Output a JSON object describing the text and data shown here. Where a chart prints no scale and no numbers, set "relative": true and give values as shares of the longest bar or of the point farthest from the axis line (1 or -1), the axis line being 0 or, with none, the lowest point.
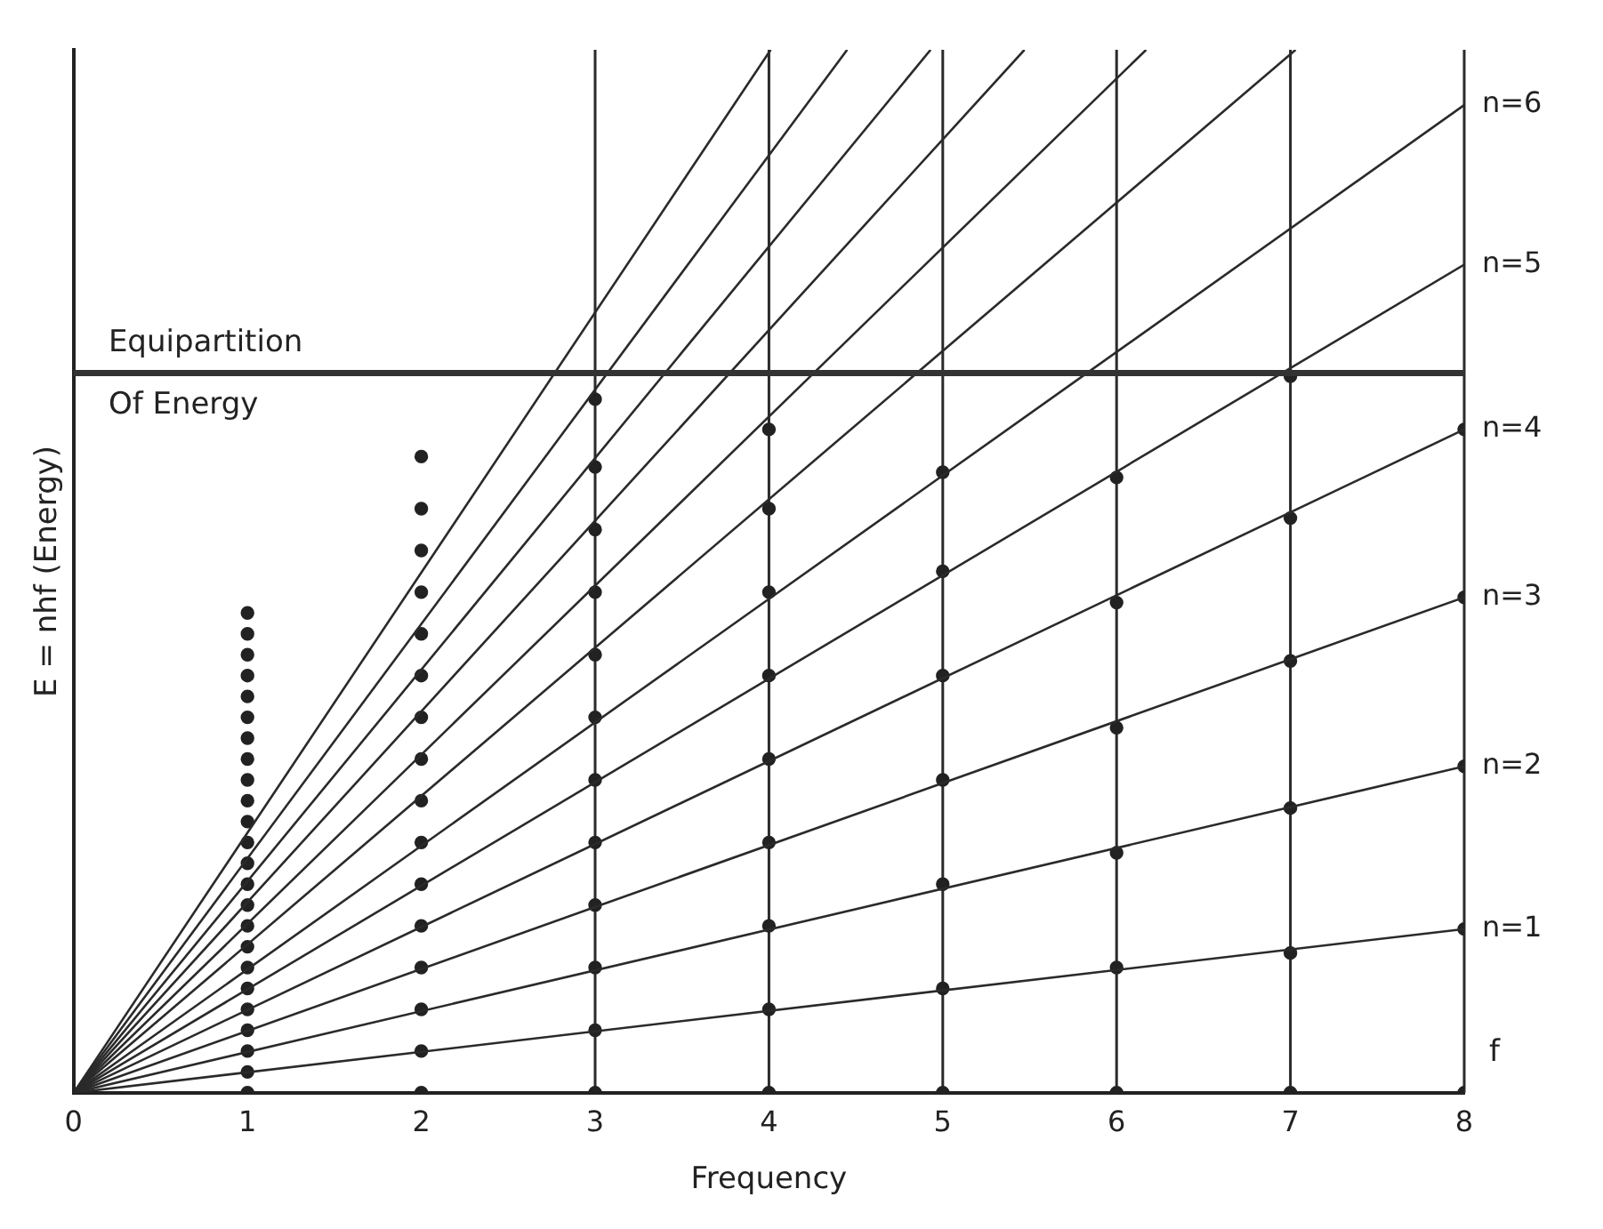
{
  "chart_data": {
    "type": "line",
    "relative": true,
    "xlabel": "Frequency",
    "ylabel": "E = nhf (Energy)",
    "xlim": [
      0,
      8
    ],
    "xticks": [
      0,
      1,
      2,
      3,
      4,
      5,
      6,
      7,
      8
    ],
    "tick_labels": "x",
    "grid": false,
    "legend": false,
    "line_style": "solid",
    "series": [
      {
        "name": "n=1",
        "color": "#2a2a2a",
        "x": [
          0,
          8
        ],
        "values": [
          0,
          0.157
        ]
      },
      {
        "name": "n=2",
        "color": "#2a2a2a",
        "x": [
          0,
          8
        ],
        "values": [
          0,
          0.313
        ]
      },
      {
        "name": "n=3",
        "color": "#2a2a2a",
        "x": [
          0,
          8
        ],
        "values": [
          0,
          0.475
        ]
      },
      {
        "name": "n=4",
        "color": "#2a2a2a",
        "x": [
          0,
          8
        ],
        "values": [
          0,
          0.636
        ]
      },
      {
        "name": "n=5",
        "color": "#2a2a2a",
        "x": [
          0,
          8
        ],
        "values": [
          0,
          0.794
        ]
      },
      {
        "name": "n=6",
        "color": "#2a2a2a",
        "x": [
          0,
          8
        ],
        "values": [
          0,
          0.947
        ]
      },
      {
        "color": "#2a2a2a",
        "x": [
          0,
          7.03
        ],
        "values": [
          0,
          1
        ]
      },
      {
        "color": "#2a2a2a",
        "x": [
          0,
          6.17
        ],
        "values": [
          0,
          1
        ]
      },
      {
        "color": "#2a2a2a",
        "x": [
          0,
          5.47
        ],
        "values": [
          0,
          1
        ]
      },
      {
        "color": "#2a2a2a",
        "x": [
          0,
          4.93
        ],
        "values": [
          0,
          1
        ]
      },
      {
        "color": "#2a2a2a",
        "x": [
          0,
          4.45
        ],
        "values": [
          0,
          1
        ]
      },
      {
        "color": "#2a2a2a",
        "x": [
          0,
          4.01
        ],
        "values": [
          0,
          1
        ]
      },
      {
        "type": "scatter",
        "color": "#222222",
        "marker": "circle",
        "x": [
          1,
          1,
          1,
          1,
          1,
          1,
          1,
          1,
          1,
          1,
          1,
          1,
          1,
          1,
          1,
          1,
          1,
          1,
          1,
          1,
          1,
          1,
          1,
          1
        ],
        "values": [
          0,
          0.02,
          0.04,
          0.06,
          0.08,
          0.1,
          0.12,
          0.14,
          0.16,
          0.18,
          0.2,
          0.22,
          0.24,
          0.26,
          0.28,
          0.3,
          0.32,
          0.34,
          0.36,
          0.38,
          0.4,
          0.42,
          0.44,
          0.46
        ]
      },
      {
        "type": "scatter",
        "color": "#222222",
        "marker": "circle",
        "x": [
          2,
          2,
          2,
          2,
          2,
          2,
          2,
          2,
          2,
          2,
          2,
          2,
          2,
          2,
          2,
          2
        ],
        "values": [
          0,
          0.04,
          0.08,
          0.12,
          0.16,
          0.2,
          0.24,
          0.28,
          0.32,
          0.36,
          0.4,
          0.44,
          0.48,
          0.52,
          0.56,
          0.61
        ]
      },
      {
        "type": "scatter",
        "color": "#222222",
        "marker": "circle",
        "x": [
          3,
          3,
          3,
          3,
          3,
          3,
          3,
          3,
          3,
          3,
          3,
          3
        ],
        "values": [
          0,
          0.06,
          0.12,
          0.18,
          0.24,
          0.3,
          0.36,
          0.42,
          0.48,
          0.54,
          0.6,
          0.665
        ]
      },
      {
        "type": "scatter",
        "color": "#222222",
        "marker": "circle",
        "x": [
          4,
          4,
          4,
          4,
          4,
          4,
          4,
          4,
          4
        ],
        "values": [
          0,
          0.08,
          0.16,
          0.24,
          0.32,
          0.4,
          0.48,
          0.56,
          0.636
        ]
      },
      {
        "type": "scatter",
        "color": "#222222",
        "marker": "circle",
        "x": [
          5,
          5,
          5,
          5,
          5,
          5,
          5
        ],
        "values": [
          0,
          0.1,
          0.2,
          0.3,
          0.4,
          0.5,
          0.595
        ]
      },
      {
        "type": "scatter",
        "color": "#222222",
        "marker": "circle",
        "x": [
          6,
          6,
          6,
          6,
          6,
          6
        ],
        "values": [
          0,
          0.12,
          0.23,
          0.35,
          0.47,
          0.59
        ]
      },
      {
        "type": "scatter",
        "color": "#222222",
        "marker": "circle",
        "x": [
          7,
          7,
          7,
          7,
          7,
          7
        ],
        "values": [
          0,
          0.134,
          0.273,
          0.414,
          0.551,
          0.687
        ]
      },
      {
        "type": "scatter",
        "color": "#222222",
        "marker": "circle",
        "x": [
          8,
          8,
          8,
          8,
          8
        ],
        "values": [
          0,
          0.157,
          0.313,
          0.475,
          0.636
        ]
      }
    ],
    "ref_lines": [
      {
        "axis": "y",
        "value": 0.69,
        "label": "Equipartition",
        "color": "#333333",
        "line_style": "solid"
      },
      {
        "axis": "x",
        "value": 3,
        "color": "#2a2a2a"
      },
      {
        "axis": "x",
        "value": 4,
        "color": "#2a2a2a"
      },
      {
        "axis": "x",
        "value": 5,
        "color": "#2a2a2a"
      },
      {
        "axis": "x",
        "value": 6,
        "color": "#2a2a2a"
      },
      {
        "axis": "x",
        "value": 7,
        "color": "#2a2a2a"
      }
    ],
    "annotations": [
      {
        "text": "Of Energy",
        "x": 0.2,
        "y": 0.69
      },
      "f"
    ]
  }
}
